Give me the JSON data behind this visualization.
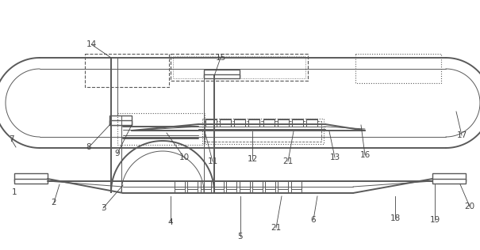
{
  "fig_width": 6.05,
  "fig_height": 3.16,
  "dpi": 100,
  "bg_color": "#ffffff",
  "line_color": "#5a5a5a",
  "line_width": 1.0,
  "annotation_color": "#444444"
}
